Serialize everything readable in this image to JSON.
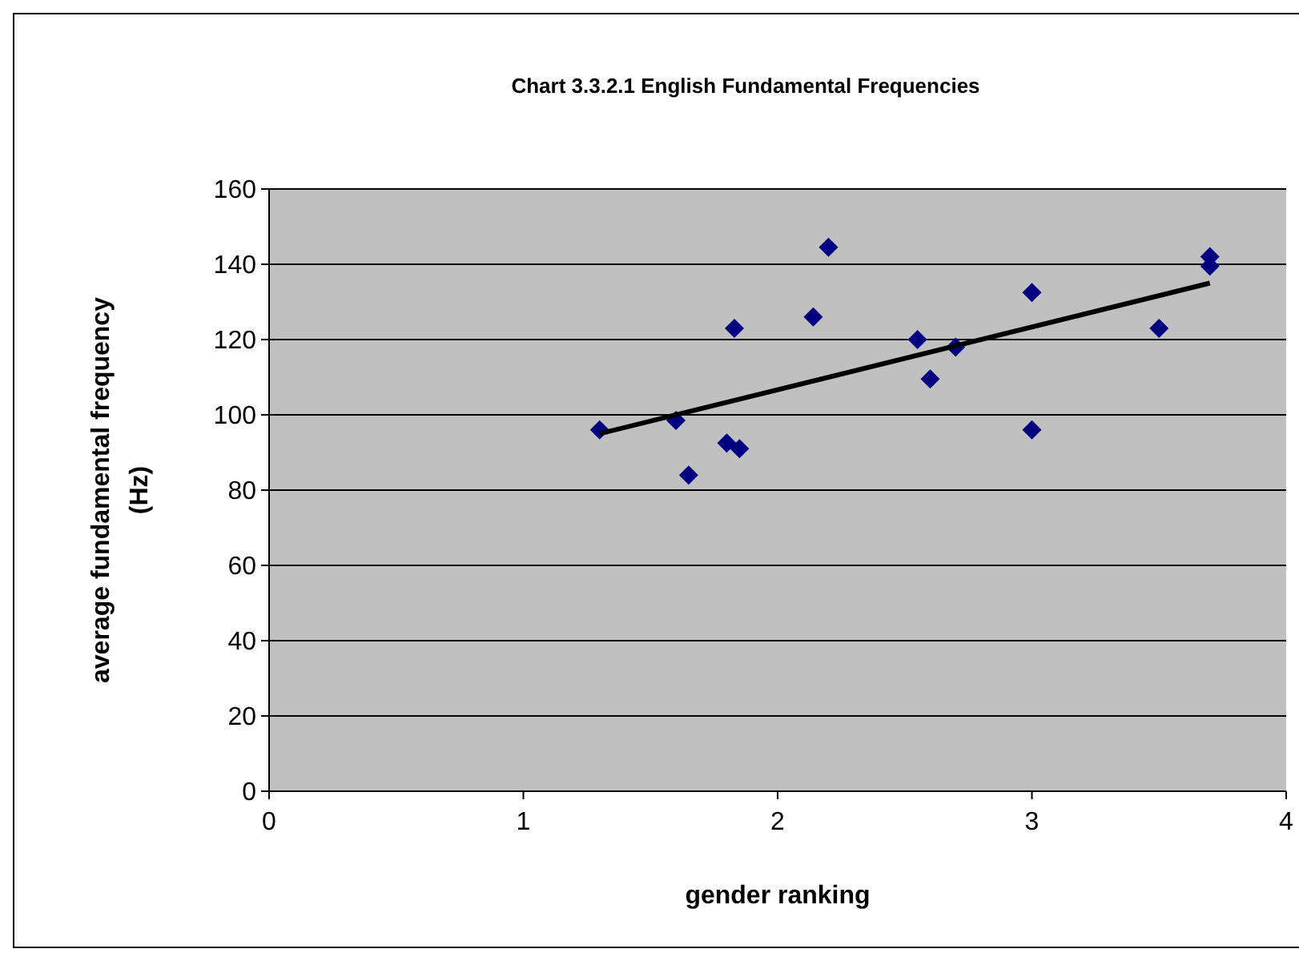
{
  "chart_data": {
    "type": "scatter",
    "title": "Chart 3.3.2.1 English Fundamental Frequencies",
    "xlabel": "gender ranking",
    "ylabel": "average fundamental frequency (Hz)",
    "xlim": [
      0,
      4
    ],
    "xticks": [
      0,
      1,
      2,
      3,
      4
    ],
    "ylim": [
      0,
      160
    ],
    "yticks": [
      0,
      20,
      40,
      60,
      80,
      100,
      120,
      140,
      160
    ],
    "grid": "y",
    "series": [
      {
        "marker": "diamond",
        "color": "#000080",
        "x": [
          1.3,
          1.6,
          1.65,
          1.8,
          1.83,
          1.85,
          2.14,
          2.2,
          2.55,
          2.6,
          2.7,
          3.0,
          3.0,
          3.5,
          3.7,
          3.7
        ],
        "values": [
          96,
          98.5,
          84,
          92.5,
          123,
          91,
          126,
          144.5,
          120,
          109.5,
          118,
          132.5,
          96,
          123,
          142,
          139.5
        ]
      },
      {
        "type": "line",
        "marker": "none",
        "color": "#000000",
        "x": [
          1.3,
          3.7
        ],
        "values": [
          95,
          135
        ]
      }
    ]
  }
}
